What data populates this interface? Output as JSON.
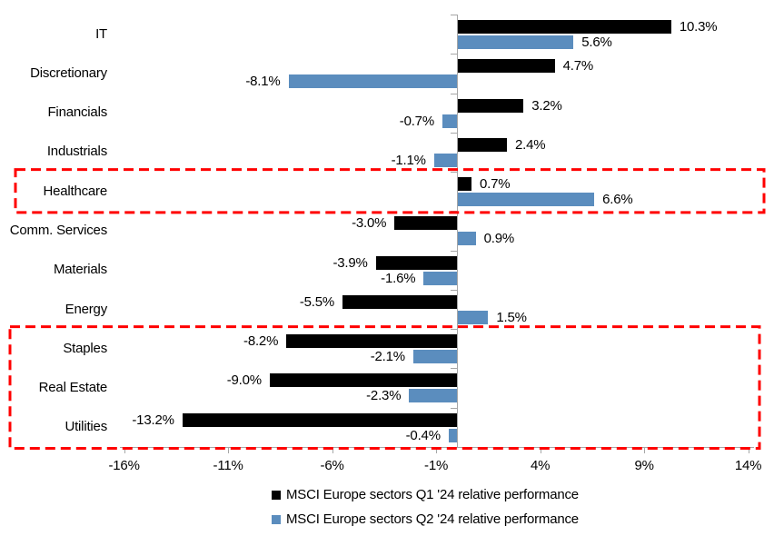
{
  "chart_data": {
    "type": "bar",
    "orientation": "horizontal",
    "categories": [
      "IT",
      "Discretionary",
      "Financials",
      "Industrials",
      "Healthcare",
      "Comm. Services",
      "Materials",
      "Energy",
      "Staples",
      "Real Estate",
      "Utilities"
    ],
    "series": [
      {
        "name": "MSCI Europe sectors Q1 '24 relative performance",
        "color": "#000000",
        "values": [
          10.3,
          4.7,
          3.2,
          2.4,
          0.7,
          -3.0,
          -3.9,
          -5.5,
          -8.2,
          -9.0,
          -13.2
        ]
      },
      {
        "name": "MSCI Europe sectors Q2 '24 relative performance",
        "color": "#5B8DBE",
        "values": [
          5.6,
          -8.1,
          -0.7,
          -1.1,
          6.6,
          0.9,
          -1.6,
          1.5,
          -2.1,
          -2.3,
          -0.4
        ]
      }
    ],
    "x_axis": {
      "ticks": [
        -16,
        -11,
        -6,
        -1,
        4,
        9,
        14
      ],
      "tick_labels": [
        "-16%",
        "-11%",
        "-6%",
        "-1%",
        "4%",
        "9%",
        "14%"
      ],
      "min": -16.5,
      "max": 14.5,
      "unit": "%"
    },
    "value_label_format": "one-decimal-percent",
    "grid": false,
    "legend_position": "bottom",
    "axis_color": "#A6A6A6",
    "highlight_color": "#FF0000",
    "highlights": [
      {
        "label": "healthcare-highlight-box",
        "categories": [
          "Healthcare"
        ]
      },
      {
        "label": "defensives-highlight-box",
        "categories": [
          "Staples",
          "Real Estate",
          "Utilities"
        ]
      }
    ]
  }
}
